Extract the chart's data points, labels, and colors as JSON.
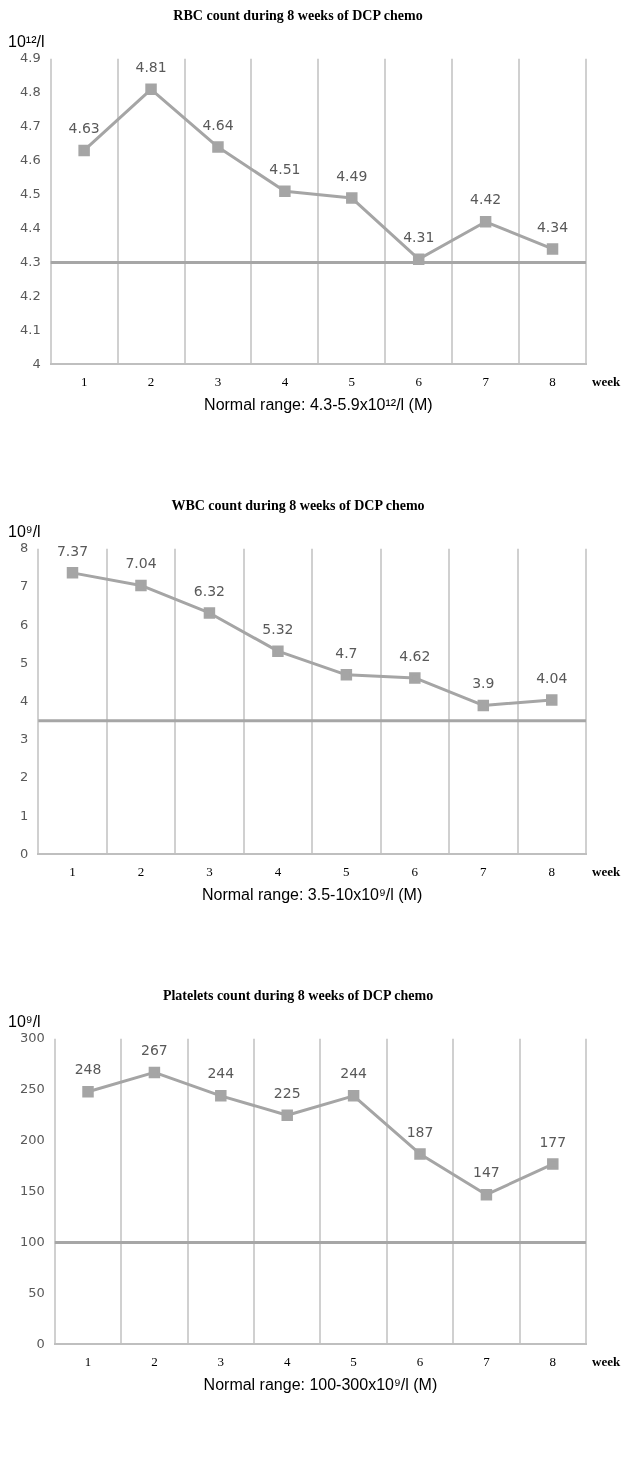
{
  "chart_data": [
    {
      "type": "line",
      "title": "RBC count during 8 weeks of DCP chemo",
      "ylabel": "10¹²/l",
      "xlabel": "week",
      "categories": [
        "1",
        "2",
        "3",
        "4",
        "5",
        "6",
        "7",
        "8"
      ],
      "series": [
        {
          "color": "#a5a5a5",
          "values": [
            4.63,
            4.81,
            4.64,
            4.51,
            4.49,
            4.31,
            4.42,
            4.34
          ]
        }
      ],
      "ylim": [
        4,
        4.9
      ],
      "yticks": [
        4,
        4.1,
        4.2,
        4.3,
        4.4,
        4.5,
        4.6,
        4.7,
        4.8,
        4.9
      ],
      "grid": "x",
      "marker": "square",
      "data_labels": true,
      "ref_lines": [
        {
          "axis": "y",
          "value": 4.3,
          "color": "#a6a6a6"
        }
      ],
      "annotations": [
        "Normal range: 4.3-5.9x10¹²/l (M)"
      ]
    },
    {
      "type": "line",
      "title": "WBC count during 8 weeks of DCP chemo",
      "ylabel": "10⁹/l",
      "xlabel": "week",
      "categories": [
        "1",
        "2",
        "3",
        "4",
        "5",
        "6",
        "7",
        "8"
      ],
      "series": [
        {
          "color": "#a5a5a5",
          "values": [
            7.37,
            7.04,
            6.32,
            5.32,
            4.7,
            4.62,
            3.9,
            4.04
          ]
        }
      ],
      "ylim": [
        0,
        8
      ],
      "yticks": [
        0,
        1,
        2,
        3,
        4,
        5,
        6,
        7,
        8
      ],
      "grid": "x",
      "marker": "square",
      "data_labels": true,
      "ref_lines": [
        {
          "axis": "y",
          "value": 3.5,
          "color": "#a6a6a6"
        }
      ],
      "annotations": [
        "Normal range: 3.5-10x10⁹/l (M)"
      ]
    },
    {
      "type": "line",
      "title": "Platelets count during 8 weeks of DCP chemo",
      "ylabel": "10⁹/l",
      "xlabel": "week",
      "categories": [
        "1",
        "2",
        "3",
        "4",
        "5",
        "6",
        "7",
        "8"
      ],
      "series": [
        {
          "color": "#a5a5a5",
          "values": [
            248,
            267,
            244,
            225,
            244,
            187,
            147,
            177
          ]
        }
      ],
      "ylim": [
        0,
        300
      ],
      "yticks": [
        0,
        50,
        100,
        150,
        200,
        250,
        300
      ],
      "grid": "x",
      "marker": "square",
      "data_labels": true,
      "ref_lines": [
        {
          "axis": "y",
          "value": 100,
          "color": "#a6a6a6"
        }
      ],
      "annotations": [
        "Normal range: 100-300x10⁹/l (M)"
      ]
    }
  ]
}
